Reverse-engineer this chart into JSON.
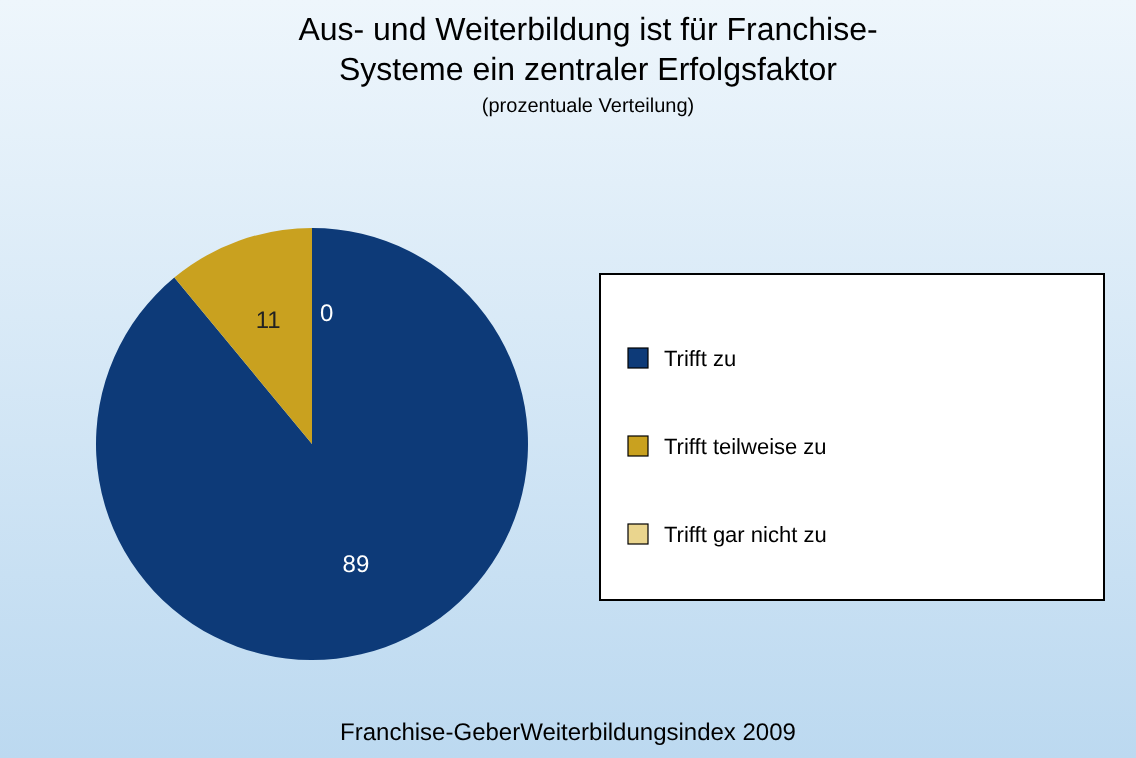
{
  "chart_data": {
    "type": "pie",
    "title": "Aus- und Weiterbildung ist für Franchise-\nSysteme ein zentraler Erfolgsfaktor",
    "subtitle": "(prozentuale Verteilung)",
    "categories": [
      "Trifft zu",
      "Trifft teilweise zu",
      "Trifft gar nicht zu"
    ],
    "values": [
      89,
      11,
      0
    ],
    "colors": [
      "#0d3a78",
      "#c9a11f",
      "#ead58e"
    ],
    "value_labels": [
      "89",
      "11",
      "0"
    ],
    "legend": "right",
    "annotations": [
      "Franchise-GeberWeiterbildungsindex 2009"
    ]
  }
}
